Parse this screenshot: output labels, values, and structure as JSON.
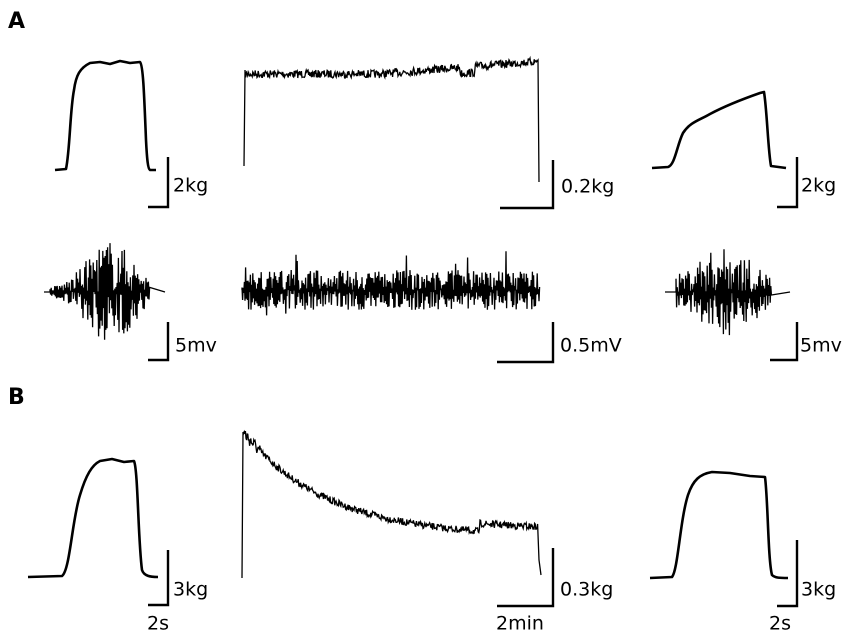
{
  "panels": [
    {
      "label": "A",
      "rows": [
        {
          "scales": [
            "2kg",
            "0.2kg",
            "2kg"
          ]
        },
        {
          "scales": [
            "5mv",
            "0.5mV",
            "5mv"
          ]
        }
      ]
    },
    {
      "label": "B",
      "rows": [
        {
          "scales": [
            "3kg",
            "0.3kg",
            "3kg"
          ],
          "times": [
            "2s",
            "2min",
            "2s"
          ]
        }
      ]
    }
  ]
}
